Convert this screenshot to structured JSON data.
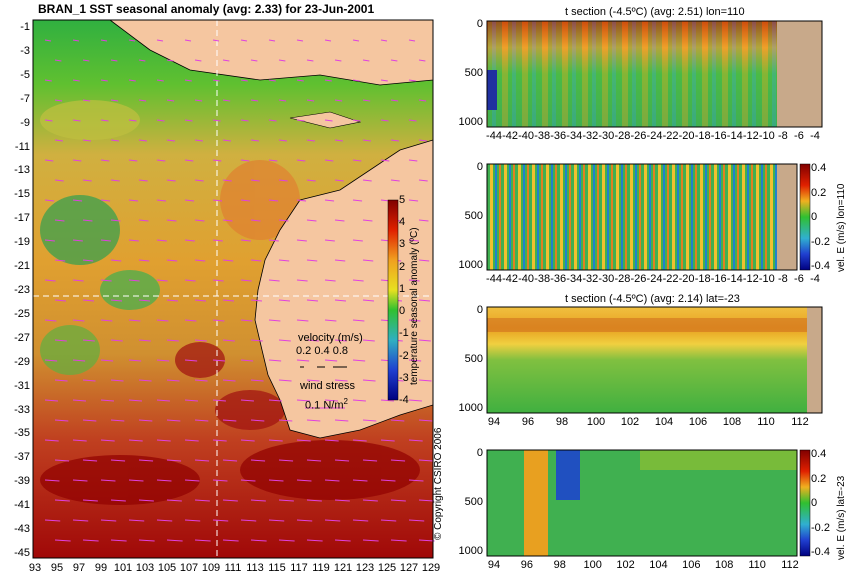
{
  "main_map": {
    "title": "BRAN_1 SST seasonal anomaly (avg: 2.33) for 23-Jun-2001",
    "lat_ticks": [
      "-1",
      "-3",
      "-5",
      "-7",
      "-9",
      "-11",
      "-13",
      "-15",
      "-17",
      "-19",
      "-21",
      "-23",
      "-25",
      "-27",
      "-29",
      "-31",
      "-33",
      "-35",
      "-37",
      "-39",
      "-41",
      "-43",
      "-45"
    ],
    "lon_ticks": [
      "93",
      "95",
      "97",
      "99",
      "101",
      "103",
      "105",
      "107",
      "109",
      "111",
      "113",
      "115",
      "117",
      "119",
      "121",
      "123",
      "125",
      "127",
      "129"
    ],
    "colorbar": {
      "label": "temperature seasonal anomaly (ºC)",
      "ticks": [
        "5",
        "4",
        "3",
        "2",
        "1",
        "0",
        "-1",
        "-2",
        "-3",
        "-4"
      ],
      "min": -4,
      "max": 5
    },
    "legend": {
      "velocity_label": "velocity (m/s)",
      "velocity_values": "0.2 0.4 0.8",
      "wind_label": "wind stress",
      "wind_value": "0.1 N/m",
      "wind_superscript": "2"
    },
    "copyright": "© Copyright CSIRO 2006"
  },
  "panels": {
    "p1": {
      "title": "t section (-4.5ºC) (avg: 2.51) lon=110",
      "y_ticks": [
        "0",
        "500",
        "1000"
      ],
      "x_ticks": [
        "-44",
        "-42",
        "-40",
        "-38",
        "-36",
        "-34",
        "-32",
        "-30",
        "-28",
        "-26",
        "-24",
        "-22",
        "-20",
        "-18",
        "-16",
        "-14",
        "-12",
        "-10",
        "-8",
        "-6",
        "-4"
      ]
    },
    "p2": {
      "title": "",
      "y_ticks": [
        "0",
        "500",
        "1000"
      ],
      "x_ticks": [
        "-44",
        "-42",
        "-40",
        "-38",
        "-36",
        "-34",
        "-32",
        "-30",
        "-28",
        "-26",
        "-24",
        "-22",
        "-20",
        "-18",
        "-16",
        "-14",
        "-12",
        "-10",
        "-8",
        "-6",
        "-4"
      ],
      "colorbar_label": "vel. E (m/s) lon=110",
      "colorbar_ticks": [
        "0.4",
        "0.2",
        "0",
        "-0.2",
        "-0.4"
      ]
    },
    "p3": {
      "title": "t section (-4.5ºC) (avg: 2.14) lat=-23",
      "y_ticks": [
        "0",
        "500",
        "1000"
      ],
      "x_ticks": [
        "94",
        "96",
        "98",
        "100",
        "102",
        "104",
        "106",
        "108",
        "110",
        "112"
      ]
    },
    "p4": {
      "title": "",
      "y_ticks": [
        "0",
        "500",
        "1000"
      ],
      "x_ticks": [
        "94",
        "96",
        "98",
        "100",
        "102",
        "104",
        "106",
        "108",
        "110",
        "112"
      ],
      "colorbar_label": "vel. E (m/s) lat=-23",
      "colorbar_ticks": [
        "0.4",
        "0.2",
        "0",
        "-0.2",
        "-0.4"
      ]
    }
  },
  "colors": {
    "land": "#f5c6a0",
    "land_section": "#c8a98a",
    "anomaly_high": "#a00000",
    "anomaly_mid": "#f0c030",
    "anomaly_low": "#20a040",
    "arrows": "#e040e0"
  }
}
